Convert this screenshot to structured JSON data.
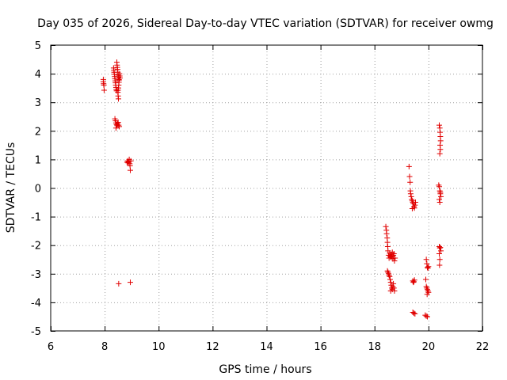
{
  "chart_data": {
    "type": "scatter",
    "title": "Day 035 of 2026, Sidereal Day-to-day VTEC variation (SDTVAR) for receiver owmg",
    "xlabel": "GPS time / hours",
    "ylabel": "SDTVAR / TECUs",
    "xlim": [
      6,
      22
    ],
    "ylim": [
      -5,
      5
    ],
    "xticks": [
      6,
      8,
      10,
      12,
      14,
      16,
      18,
      20,
      22
    ],
    "yticks": [
      -5,
      -4,
      -3,
      -2,
      -1,
      0,
      1,
      2,
      3,
      4,
      5
    ],
    "grid": true,
    "marker": "plus",
    "marker_color": "#e00000",
    "grid_color": "#a0a0a0",
    "series": [
      {
        "name": "SDTVAR",
        "points": [
          [
            7.95,
            3.8
          ],
          [
            7.95,
            3.72
          ],
          [
            7.96,
            3.65
          ],
          [
            7.97,
            3.6
          ],
          [
            7.98,
            3.42
          ],
          [
            8.33,
            4.2
          ],
          [
            8.34,
            4.12
          ],
          [
            8.35,
            4.05
          ],
          [
            8.36,
            3.98
          ],
          [
            8.37,
            3.9
          ],
          [
            8.38,
            3.82
          ],
          [
            8.39,
            3.75
          ],
          [
            8.4,
            3.68
          ],
          [
            8.41,
            3.6
          ],
          [
            8.42,
            3.52
          ],
          [
            8.43,
            3.45
          ],
          [
            8.44,
            3.4
          ],
          [
            8.45,
            4.4
          ],
          [
            8.46,
            4.3
          ],
          [
            8.47,
            4.22
          ],
          [
            8.48,
            4.15
          ],
          [
            8.49,
            4.05
          ],
          [
            8.5,
            3.95
          ],
          [
            8.51,
            3.88
          ],
          [
            8.52,
            3.8
          ],
          [
            8.53,
            3.7
          ],
          [
            8.52,
            3.6
          ],
          [
            8.51,
            3.5
          ],
          [
            8.5,
            3.42
          ],
          [
            8.49,
            3.35
          ],
          [
            8.5,
            3.22
          ],
          [
            8.51,
            3.12
          ],
          [
            8.55,
            4.0
          ],
          [
            8.56,
            3.92
          ],
          [
            8.57,
            3.85
          ],
          [
            8.54,
            3.78
          ],
          [
            8.38,
            2.42
          ],
          [
            8.4,
            2.35
          ],
          [
            8.42,
            2.28
          ],
          [
            8.44,
            2.22
          ],
          [
            8.46,
            2.18
          ],
          [
            8.48,
            2.25
          ],
          [
            8.5,
            2.3
          ],
          [
            8.52,
            2.2
          ],
          [
            8.54,
            2.15
          ],
          [
            8.42,
            2.1
          ],
          [
            8.52,
            -3.35
          ],
          [
            8.95,
            -3.3
          ],
          [
            8.83,
            0.9
          ],
          [
            8.85,
            0.95
          ],
          [
            8.87,
            0.88
          ],
          [
            8.89,
            0.92
          ],
          [
            8.91,
            1.0
          ],
          [
            8.93,
            0.85
          ],
          [
            8.94,
            0.78
          ],
          [
            8.95,
            0.62
          ],
          [
            8.97,
            0.95
          ],
          [
            18.42,
            -1.35
          ],
          [
            18.44,
            -1.48
          ],
          [
            18.45,
            -1.6
          ],
          [
            18.47,
            -1.75
          ],
          [
            18.48,
            -1.9
          ],
          [
            18.49,
            -2.05
          ],
          [
            18.5,
            -2.2
          ],
          [
            18.52,
            -2.35
          ],
          [
            18.54,
            -2.45
          ],
          [
            18.56,
            -2.28
          ],
          [
            18.58,
            -2.38
          ],
          [
            18.6,
            -2.42
          ],
          [
            18.62,
            -2.32
          ],
          [
            18.64,
            -2.4
          ],
          [
            18.66,
            -2.25
          ],
          [
            18.68,
            -2.48
          ],
          [
            18.7,
            -2.35
          ],
          [
            18.72,
            -2.3
          ],
          [
            18.74,
            -2.55
          ],
          [
            18.76,
            -2.45
          ],
          [
            18.48,
            -2.9
          ],
          [
            18.5,
            -2.95
          ],
          [
            18.52,
            -3.0
          ],
          [
            18.54,
            -3.05
          ],
          [
            18.56,
            -3.1
          ],
          [
            18.58,
            -3.2
          ],
          [
            18.6,
            -3.3
          ],
          [
            18.62,
            -3.4
          ],
          [
            18.64,
            -3.5
          ],
          [
            18.66,
            -3.55
          ],
          [
            18.68,
            -3.45
          ],
          [
            18.7,
            -3.35
          ],
          [
            18.72,
            -3.5
          ],
          [
            18.74,
            -3.6
          ],
          [
            18.6,
            -3.6
          ],
          [
            19.28,
            0.75
          ],
          [
            19.3,
            0.4
          ],
          [
            19.32,
            0.2
          ],
          [
            19.33,
            -0.1
          ],
          [
            19.34,
            -0.2
          ],
          [
            19.36,
            -0.3
          ],
          [
            19.38,
            -0.4
          ],
          [
            19.4,
            -0.45
          ],
          [
            19.42,
            -0.5
          ],
          [
            19.44,
            -0.55
          ],
          [
            19.46,
            -0.65
          ],
          [
            19.48,
            -0.7
          ],
          [
            19.5,
            -0.6
          ],
          [
            19.52,
            -0.5
          ],
          [
            19.4,
            -0.72
          ],
          [
            19.42,
            -3.25
          ],
          [
            19.44,
            -3.3
          ],
          [
            19.46,
            -3.28
          ],
          [
            19.48,
            -3.22
          ],
          [
            19.42,
            -4.35
          ],
          [
            19.46,
            -4.38
          ],
          [
            19.5,
            -4.4
          ],
          [
            19.92,
            -2.5
          ],
          [
            19.94,
            -2.65
          ],
          [
            19.96,
            -2.78
          ],
          [
            19.98,
            -2.8
          ],
          [
            20.0,
            -2.75
          ],
          [
            19.9,
            -3.2
          ],
          [
            19.92,
            -3.45
          ],
          [
            19.94,
            -3.5
          ],
          [
            19.96,
            -3.55
          ],
          [
            19.98,
            -3.6
          ],
          [
            20.0,
            -3.65
          ],
          [
            19.95,
            -3.72
          ],
          [
            19.88,
            -4.45
          ],
          [
            19.92,
            -4.48
          ],
          [
            19.96,
            -4.5
          ],
          [
            20.4,
            2.2
          ],
          [
            20.42,
            2.1
          ],
          [
            20.43,
            1.95
          ],
          [
            20.44,
            1.8
          ],
          [
            20.45,
            1.65
          ],
          [
            20.43,
            1.5
          ],
          [
            20.44,
            1.35
          ],
          [
            20.42,
            1.2
          ],
          [
            20.38,
            0.1
          ],
          [
            20.4,
            0.05
          ],
          [
            20.42,
            -0.1
          ],
          [
            20.44,
            -0.2
          ],
          [
            20.46,
            -0.3
          ],
          [
            20.4,
            -0.4
          ],
          [
            20.42,
            -0.5
          ],
          [
            20.44,
            -0.15
          ],
          [
            20.4,
            -2.05
          ],
          [
            20.42,
            -2.1
          ],
          [
            20.44,
            -2.08
          ],
          [
            20.46,
            -2.2
          ],
          [
            20.4,
            -2.3
          ],
          [
            20.42,
            -2.5
          ],
          [
            20.41,
            -2.7
          ]
        ]
      }
    ]
  }
}
